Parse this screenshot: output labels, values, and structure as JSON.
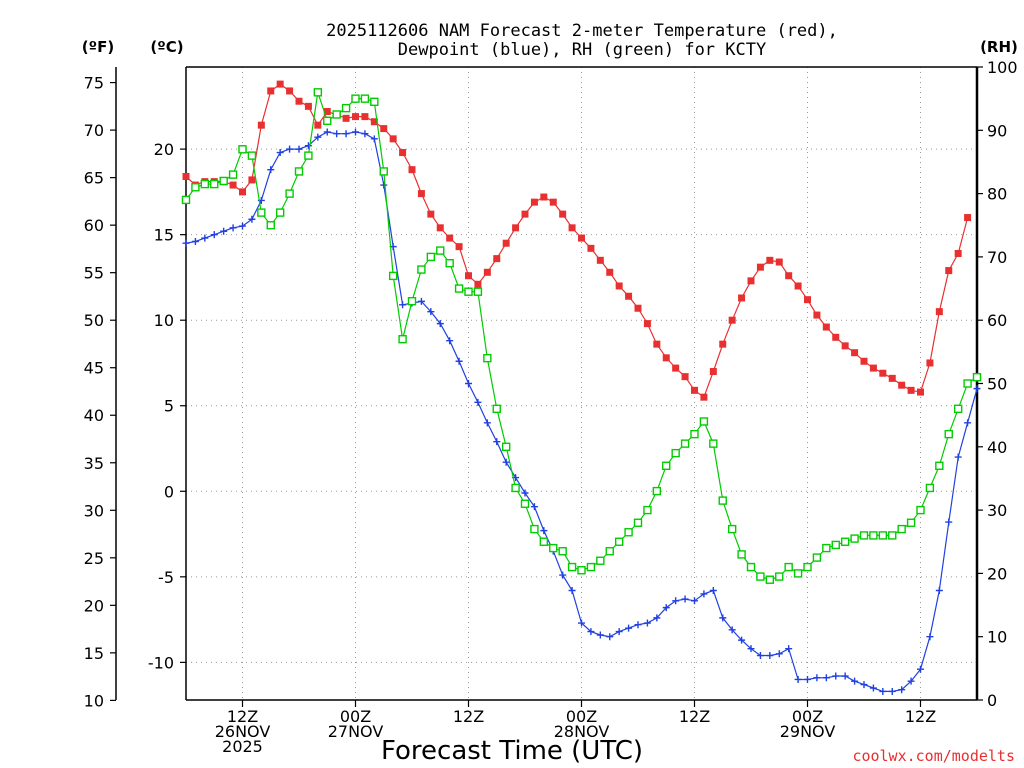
{
  "chart_data": {
    "type": "line",
    "title_line1": "2025112606 NAM Forecast 2-meter Temperature (red),",
    "title_line2": "Dewpoint (blue), RH (green) for KCTY",
    "xlabel": "Forecast Time (UTC)",
    "left_outer_unit": "(ºF)",
    "left_inner_unit": "(ºC)",
    "right_unit": "(RH)",
    "credit": "coolwx.com/modelts",
    "colors": {
      "temperature": "#e83030",
      "dewpoint": "#2040e0",
      "rh": "#00cc00"
    },
    "x_range_hours": [
      0,
      84
    ],
    "x_ticks": [
      {
        "hour": 6,
        "l1": "12Z",
        "l2": "26NOV",
        "l3": "2025"
      },
      {
        "hour": 18,
        "l1": "00Z",
        "l2": "27NOV",
        "l3": ""
      },
      {
        "hour": 30,
        "l1": "12Z",
        "l2": "",
        "l3": ""
      },
      {
        "hour": 42,
        "l1": "00Z",
        "l2": "28NOV",
        "l3": ""
      },
      {
        "hour": 54,
        "l1": "12Z",
        "l2": "",
        "l3": ""
      },
      {
        "hour": 66,
        "l1": "00Z",
        "l2": "29NOV",
        "l3": ""
      },
      {
        "hour": 78,
        "l1": "12Z",
        "l2": "",
        "l3": ""
      }
    ],
    "celsius_ticks": [
      "20",
      "15",
      "10",
      "5",
      "0",
      "-5",
      "-10"
    ],
    "fahrenheit_ticks": [
      "75",
      "70",
      "65",
      "60",
      "55",
      "50",
      "45",
      "40",
      "35",
      "30",
      "25",
      "20",
      "15",
      "10"
    ],
    "rh_ticks": [
      "100",
      "90",
      "80",
      "70",
      "60",
      "50",
      "40",
      "30",
      "20",
      "10",
      "0"
    ],
    "ylim_celsius": [
      -12.2,
      24.8
    ],
    "ylim_rh": [
      0,
      100
    ],
    "grid": true,
    "series": [
      {
        "name": "Temperature",
        "unit": "C",
        "points": [
          [
            0,
            18.4
          ],
          [
            1,
            17.9
          ],
          [
            2,
            18.1
          ],
          [
            3,
            18.1
          ],
          [
            4,
            18.1
          ],
          [
            5,
            17.9
          ],
          [
            6,
            17.5
          ],
          [
            7,
            18.2
          ],
          [
            8,
            21.4
          ],
          [
            9,
            23.4
          ],
          [
            10,
            23.8
          ],
          [
            11,
            23.4
          ],
          [
            12,
            22.8
          ],
          [
            13,
            22.5
          ],
          [
            14,
            21.4
          ],
          [
            15,
            22.2
          ],
          [
            16,
            22.0
          ],
          [
            17,
            21.8
          ],
          [
            18,
            21.9
          ],
          [
            19,
            21.9
          ],
          [
            20,
            21.6
          ],
          [
            21,
            21.2
          ],
          [
            22,
            20.6
          ],
          [
            23,
            19.8
          ],
          [
            24,
            18.8
          ],
          [
            25,
            17.4
          ],
          [
            26,
            16.2
          ],
          [
            27,
            15.4
          ],
          [
            28,
            14.8
          ],
          [
            29,
            14.3
          ],
          [
            30,
            12.6
          ],
          [
            31,
            12.1
          ],
          [
            32,
            12.8
          ],
          [
            33,
            13.6
          ],
          [
            34,
            14.5
          ],
          [
            35,
            15.4
          ],
          [
            36,
            16.2
          ],
          [
            37,
            16.9
          ],
          [
            38,
            17.2
          ],
          [
            39,
            16.9
          ],
          [
            40,
            16.2
          ],
          [
            41,
            15.4
          ],
          [
            42,
            14.8
          ],
          [
            43,
            14.2
          ],
          [
            44,
            13.5
          ],
          [
            45,
            12.8
          ],
          [
            46,
            12.0
          ],
          [
            47,
            11.4
          ],
          [
            48,
            10.7
          ],
          [
            49,
            9.8
          ],
          [
            50,
            8.6
          ],
          [
            51,
            7.8
          ],
          [
            52,
            7.2
          ],
          [
            53,
            6.7
          ],
          [
            54,
            5.9
          ],
          [
            55,
            5.5
          ],
          [
            56,
            7.0
          ],
          [
            57,
            8.6
          ],
          [
            58,
            10.0
          ],
          [
            59,
            11.3
          ],
          [
            60,
            12.3
          ],
          [
            61,
            13.1
          ],
          [
            62,
            13.5
          ],
          [
            63,
            13.4
          ],
          [
            64,
            12.6
          ],
          [
            65,
            12.0
          ],
          [
            66,
            11.2
          ],
          [
            67,
            10.3
          ],
          [
            68,
            9.6
          ],
          [
            69,
            9.0
          ],
          [
            70,
            8.5
          ],
          [
            71,
            8.1
          ],
          [
            72,
            7.6
          ],
          [
            73,
            7.2
          ],
          [
            74,
            6.9
          ],
          [
            75,
            6.6
          ],
          [
            76,
            6.2
          ],
          [
            77,
            5.9
          ],
          [
            78,
            5.8
          ],
          [
            79,
            7.5
          ],
          [
            80,
            10.5
          ],
          [
            81,
            12.9
          ],
          [
            82,
            13.9
          ],
          [
            83,
            16.0
          ]
        ]
      },
      {
        "name": "Dewpoint",
        "unit": "C",
        "points": [
          [
            0,
            14.5
          ],
          [
            1,
            14.6
          ],
          [
            2,
            14.8
          ],
          [
            3,
            15.0
          ],
          [
            4,
            15.2
          ],
          [
            5,
            15.4
          ],
          [
            6,
            15.5
          ],
          [
            7,
            15.9
          ],
          [
            8,
            17.0
          ],
          [
            9,
            18.8
          ],
          [
            10,
            19.8
          ],
          [
            11,
            20.0
          ],
          [
            12,
            20.0
          ],
          [
            13,
            20.2
          ],
          [
            14,
            20.7
          ],
          [
            15,
            21.0
          ],
          [
            16,
            20.9
          ],
          [
            17,
            20.9
          ],
          [
            18,
            21.0
          ],
          [
            19,
            20.9
          ],
          [
            20,
            20.6
          ],
          [
            21,
            17.9
          ],
          [
            22,
            14.3
          ],
          [
            23,
            10.9
          ],
          [
            24,
            11.0
          ],
          [
            25,
            11.1
          ],
          [
            26,
            10.5
          ],
          [
            27,
            9.8
          ],
          [
            28,
            8.8
          ],
          [
            29,
            7.6
          ],
          [
            30,
            6.3
          ],
          [
            31,
            5.2
          ],
          [
            32,
            4.0
          ],
          [
            33,
            2.9
          ],
          [
            34,
            1.7
          ],
          [
            35,
            0.8
          ],
          [
            36,
            -0.1
          ],
          [
            37,
            -0.9
          ],
          [
            38,
            -2.3
          ],
          [
            39,
            -3.5
          ],
          [
            40,
            -4.9
          ],
          [
            41,
            -5.8
          ],
          [
            42,
            -7.7
          ],
          [
            43,
            -8.2
          ],
          [
            44,
            -8.4
          ],
          [
            45,
            -8.5
          ],
          [
            46,
            -8.2
          ],
          [
            47,
            -8.0
          ],
          [
            48,
            -7.8
          ],
          [
            49,
            -7.7
          ],
          [
            50,
            -7.4
          ],
          [
            51,
            -6.8
          ],
          [
            52,
            -6.4
          ],
          [
            53,
            -6.3
          ],
          [
            54,
            -6.4
          ],
          [
            55,
            -6.0
          ],
          [
            56,
            -5.8
          ],
          [
            57,
            -7.4
          ],
          [
            58,
            -8.1
          ],
          [
            59,
            -8.7
          ],
          [
            60,
            -9.2
          ],
          [
            61,
            -9.6
          ],
          [
            62,
            -9.6
          ],
          [
            63,
            -9.5
          ],
          [
            64,
            -9.2
          ],
          [
            65,
            -11.0
          ],
          [
            66,
            -11.0
          ],
          [
            67,
            -10.9
          ],
          [
            68,
            -10.9
          ],
          [
            69,
            -10.8
          ],
          [
            70,
            -10.8
          ],
          [
            71,
            -11.1
          ],
          [
            72,
            -11.3
          ],
          [
            73,
            -11.5
          ],
          [
            74,
            -11.7
          ],
          [
            75,
            -11.7
          ],
          [
            76,
            -11.6
          ],
          [
            77,
            -11.1
          ],
          [
            78,
            -10.4
          ],
          [
            79,
            -8.5
          ],
          [
            80,
            -5.8
          ],
          [
            81,
            -1.8
          ],
          [
            82,
            2.0
          ],
          [
            83,
            4.0
          ],
          [
            84,
            6.0
          ]
        ]
      },
      {
        "name": "RH",
        "unit": "%",
        "points": [
          [
            0,
            79.0
          ],
          [
            1,
            81.0
          ],
          [
            2,
            81.5
          ],
          [
            3,
            81.5
          ],
          [
            4,
            82.0
          ],
          [
            5,
            83.0
          ],
          [
            6,
            87.0
          ],
          [
            7,
            86.0
          ],
          [
            8,
            77.0
          ],
          [
            9,
            75.0
          ],
          [
            10,
            77.0
          ],
          [
            11,
            80.0
          ],
          [
            12,
            83.5
          ],
          [
            13,
            86.0
          ],
          [
            14,
            96.0
          ],
          [
            15,
            91.5
          ],
          [
            16,
            92.5
          ],
          [
            17,
            93.5
          ],
          [
            18,
            95.0
          ],
          [
            19,
            95.0
          ],
          [
            20,
            94.5
          ],
          [
            21,
            83.5
          ],
          [
            22,
            67.0
          ],
          [
            23,
            57.0
          ],
          [
            24,
            63.0
          ],
          [
            25,
            68.0
          ],
          [
            26,
            70.0
          ],
          [
            27,
            71.0
          ],
          [
            28,
            69.0
          ],
          [
            29,
            65.0
          ],
          [
            30,
            64.5
          ],
          [
            31,
            64.5
          ],
          [
            32,
            54.0
          ],
          [
            33,
            46.0
          ],
          [
            34,
            40.0
          ],
          [
            35,
            33.5
          ],
          [
            36,
            31.0
          ],
          [
            37,
            27.0
          ],
          [
            38,
            25.0
          ],
          [
            39,
            24.0
          ],
          [
            40,
            23.5
          ],
          [
            41,
            21.0
          ],
          [
            42,
            20.5
          ],
          [
            43,
            21.0
          ],
          [
            44,
            22.0
          ],
          [
            45,
            23.5
          ],
          [
            46,
            25.0
          ],
          [
            47,
            26.5
          ],
          [
            48,
            28.0
          ],
          [
            49,
            30.0
          ],
          [
            50,
            33.0
          ],
          [
            51,
            37.0
          ],
          [
            52,
            39.0
          ],
          [
            53,
            40.5
          ],
          [
            54,
            42.0
          ],
          [
            55,
            44.0
          ],
          [
            56,
            40.5
          ],
          [
            57,
            31.5
          ],
          [
            58,
            27.0
          ],
          [
            59,
            23.0
          ],
          [
            60,
            21.0
          ],
          [
            61,
            19.5
          ],
          [
            62,
            19.0
          ],
          [
            63,
            19.5
          ],
          [
            64,
            21.0
          ],
          [
            65,
            20.0
          ],
          [
            66,
            21.0
          ],
          [
            67,
            22.5
          ],
          [
            68,
            24.0
          ],
          [
            69,
            24.5
          ],
          [
            70,
            25.0
          ],
          [
            71,
            25.5
          ],
          [
            72,
            26.0
          ],
          [
            73,
            26.0
          ],
          [
            74,
            26.0
          ],
          [
            75,
            26.0
          ],
          [
            76,
            27.0
          ],
          [
            77,
            28.0
          ],
          [
            78,
            30.0
          ],
          [
            79,
            33.5
          ],
          [
            80,
            37.0
          ],
          [
            81,
            42.0
          ],
          [
            82,
            46.0
          ],
          [
            83,
            50.0
          ],
          [
            84,
            51.0
          ]
        ]
      }
    ]
  }
}
